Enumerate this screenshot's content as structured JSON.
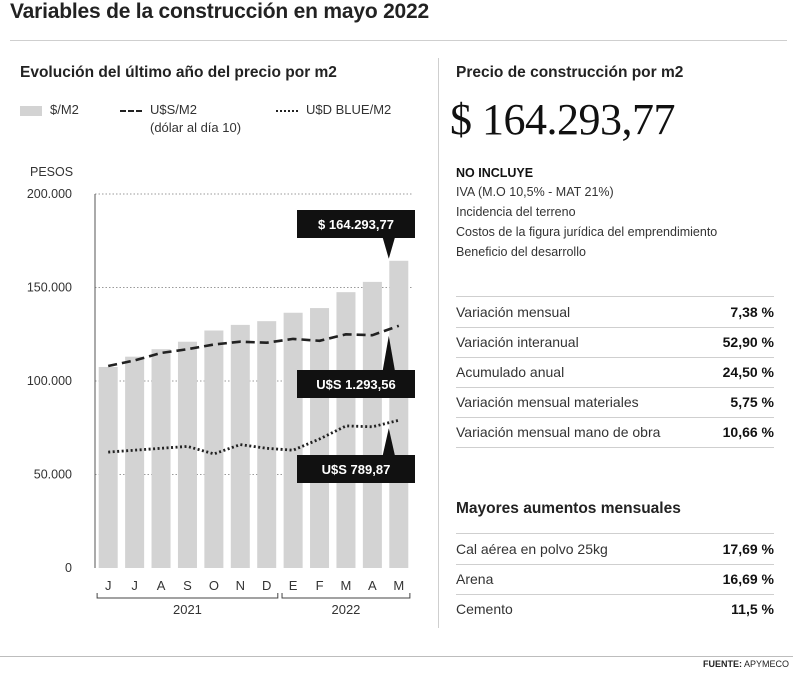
{
  "title": "Variables de la construcción en mayo 2022",
  "left_panel": {
    "subtitle": "Evolución del último año del precio por m2",
    "legend": {
      "bars_label": "$/M2",
      "dashed_label": "U$S/M2",
      "dashed_note": "(dólar al día 10)",
      "dotted_label": "U$D BLUE/M2"
    },
    "callouts": {
      "price": "$ 164.293,77",
      "usd": "U$S 1.293,56",
      "blue": "U$S 789,87"
    }
  },
  "chart_data": {
    "type": "bar",
    "ylabel": "PESOS",
    "ylim": [
      0,
      200000
    ],
    "yticks": [
      0,
      50000,
      100000,
      150000,
      200000
    ],
    "ytick_labels": [
      "0",
      "50.000",
      "100.000",
      "150.000",
      "200.000"
    ],
    "categories": [
      "J",
      "J",
      "A",
      "S",
      "O",
      "N",
      "D",
      "E",
      "F",
      "M",
      "A",
      "M"
    ],
    "year_groups": [
      {
        "label": "2021",
        "from": 0,
        "to": 6
      },
      {
        "label": "2022",
        "from": 7,
        "to": 11
      }
    ],
    "grid": true,
    "series": [
      {
        "name": "$/M2",
        "kind": "bar",
        "color": "#d3d3d3",
        "values": [
          107500,
          113000,
          117000,
          121000,
          127000,
          130000,
          132000,
          136500,
          139000,
          147500,
          153000,
          164293.77
        ]
      },
      {
        "name": "U$S/M2",
        "kind": "dashed-line",
        "color": "#222222",
        "values": [
          108000,
          111000,
          115000,
          117000,
          119500,
          121000,
          120500,
          122500,
          121500,
          125000,
          124500,
          129500
        ]
      },
      {
        "name": "U$D BLUE/M2",
        "kind": "dotted-line",
        "color": "#222222",
        "values": [
          62000,
          63000,
          64000,
          65000,
          61000,
          66000,
          64000,
          63000,
          69000,
          76000,
          75500,
          79000
        ]
      }
    ]
  },
  "right_panel": {
    "subtitle": "Precio de construcción por m2",
    "big_price": "$ 164.293,77",
    "no_incluye_title": "NO INCLUYE",
    "no_incluye_items": [
      "IVA (M.O 10,5% - MAT 21%)",
      "Incidencia del terreno",
      "Costos de la figura jurídica del emprendimiento",
      "Beneficio del desarrollo"
    ],
    "variations": [
      {
        "label": "Variación mensual",
        "value": "7,38 %"
      },
      {
        "label": "Variación interanual",
        "value": "52,90 %"
      },
      {
        "label": "Acumulado anual",
        "value": "24,50 %"
      },
      {
        "label": "Variación mensual materiales",
        "value": "5,75 %"
      },
      {
        "label": "Variación mensual mano de obra",
        "value": "10,66 %"
      }
    ],
    "increases_title": "Mayores aumentos mensuales",
    "increases": [
      {
        "label": "Cal aérea en polvo 25kg",
        "value": "17,69 %"
      },
      {
        "label": "Arena",
        "value": "16,69 %"
      },
      {
        "label": "Cemento",
        "value": "11,5 %"
      }
    ]
  },
  "footer": {
    "source_label": "FUENTE:",
    "source_value": "APYMECO"
  }
}
